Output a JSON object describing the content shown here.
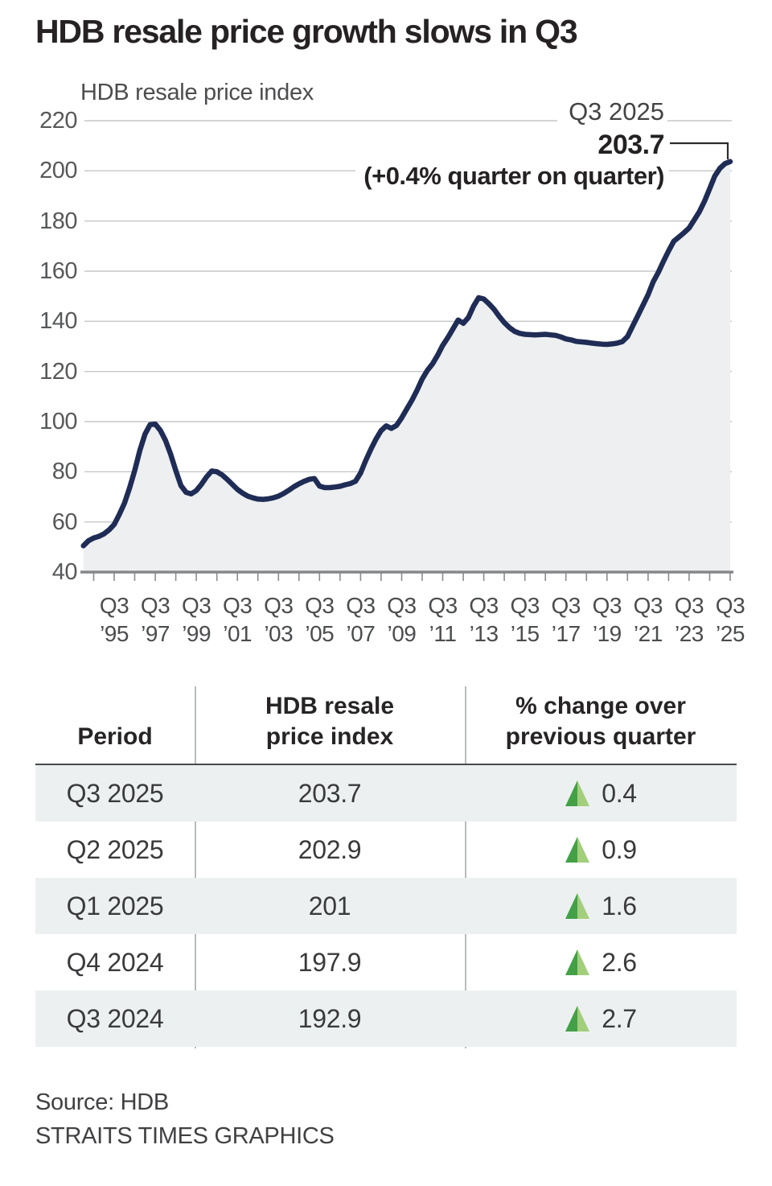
{
  "title": "HDB resale price growth slows in Q3",
  "chart": {
    "subtitle": "HDB resale price index",
    "annotation": {
      "period": "Q3 2025",
      "value": "203.7",
      "note": "(+0.4% quarter on quarter)"
    }
  },
  "chart_data": {
    "type": "area",
    "title": "HDB resale price index",
    "x_start": "1994 Q1",
    "frequency": "quarterly",
    "values": [
      50.5,
      52.5,
      53.6,
      54.2,
      55.2,
      56.8,
      59.0,
      63.0,
      67.5,
      73.5,
      80.5,
      88.5,
      95.0,
      98.8,
      99.0,
      96.5,
      92.5,
      87.0,
      80.5,
      74.5,
      71.8,
      71.2,
      72.5,
      75.0,
      78.0,
      80.3,
      80.0,
      78.8,
      77.0,
      75.0,
      73.0,
      71.5,
      70.3,
      69.6,
      69.1,
      69.0,
      69.2,
      69.6,
      70.3,
      71.3,
      72.6,
      74.0,
      75.2,
      76.2,
      77.0,
      77.3,
      74.3,
      73.7,
      73.7,
      73.9,
      74.2,
      74.8,
      75.3,
      76.2,
      79.5,
      84.5,
      89.0,
      93.0,
      96.4,
      98.3,
      97.3,
      98.5,
      101.5,
      105.0,
      108.5,
      112.5,
      117.0,
      120.4,
      123.0,
      126.4,
      130.4,
      133.5,
      137.0,
      140.5,
      139.2,
      141.5,
      146.0,
      149.4,
      148.9,
      147.0,
      144.8,
      142.0,
      139.5,
      137.5,
      136.0,
      135.2,
      134.8,
      134.7,
      134.6,
      134.7,
      134.8,
      134.6,
      134.4,
      133.8,
      133.0,
      132.6,
      132.0,
      131.8,
      131.6,
      131.3,
      131.1,
      130.9,
      130.8,
      131.0,
      131.3,
      131.9,
      133.9,
      138.1,
      142.2,
      146.4,
      150.6,
      155.7,
      159.5,
      163.9,
      168.1,
      171.9,
      173.6,
      175.3,
      177.2,
      180.4,
      183.7,
      187.9,
      192.9,
      197.9,
      201.0,
      202.9,
      203.7
    ],
    "last_point": {
      "label": "Q3 2025",
      "value": 203.7,
      "qoq_change_pct": 0.4
    },
    "ylim": [
      40,
      220
    ],
    "yticks": [
      40,
      60,
      80,
      100,
      120,
      140,
      160,
      180,
      200,
      220
    ],
    "xtick_quarter": "Q3",
    "xtick_years": [
      "’95",
      "’97",
      "’99",
      "’01",
      "’03",
      "’05",
      "’07",
      "’09",
      "’11",
      "’13",
      "’15",
      "’17",
      "’19",
      "’21",
      "’23",
      "’25"
    ],
    "grid": true,
    "legend": false
  },
  "table": {
    "headers": [
      [
        "Period"
      ],
      [
        "HDB resale",
        "price index"
      ],
      [
        "% change over",
        "previous quarter"
      ]
    ],
    "rows": [
      {
        "period": "Q3 2025",
        "index": "203.7",
        "change": "0.4",
        "direction": "up"
      },
      {
        "period": "Q2 2025",
        "index": "202.9",
        "change": "0.9",
        "direction": "up"
      },
      {
        "period": "Q1 2025",
        "index": "201",
        "change": "1.6",
        "direction": "up"
      },
      {
        "period": "Q4 2024",
        "index": "197.9",
        "change": "2.6",
        "direction": "up"
      },
      {
        "period": "Q3 2024",
        "index": "192.9",
        "change": "2.7",
        "direction": "up"
      }
    ]
  },
  "footer": {
    "source": "Source: HDB",
    "credit": "STRAITS TIMES GRAPHICS"
  },
  "colors": {
    "line": "#1f2c55",
    "fill": "#edeff1",
    "grid": "#c6c7c9",
    "axis": "#85878a",
    "tick": "#8a8c8e",
    "connector": "#2b2b2b",
    "stripe": "#edf0f1",
    "triangle_dark": "#43a047",
    "triangle_light": "#a3cf7c"
  }
}
